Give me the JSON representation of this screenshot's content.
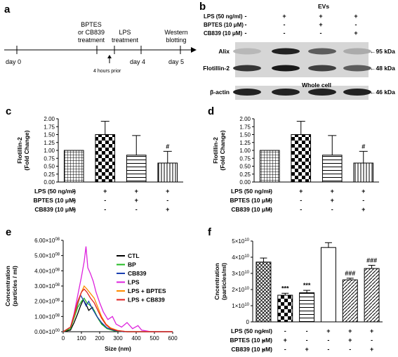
{
  "panels": {
    "a": "a",
    "b": "b",
    "c": "c",
    "d": "d",
    "e": "e",
    "f": "f"
  },
  "timeline": {
    "days": [
      {
        "label": "day 0",
        "day": 0
      },
      {
        "label": "day 4",
        "day": 4
      },
      {
        "label": "day 5",
        "day": 5
      }
    ],
    "events": [
      {
        "lines": [
          "BPTES",
          "or CB839",
          "treatment"
        ]
      },
      {
        "lines": [
          "LPS",
          "treatment"
        ]
      },
      {
        "lines": [
          "Western",
          "blotting"
        ]
      }
    ],
    "prior_note": "4 hours prior"
  },
  "western": {
    "evs_label": "EVs",
    "whole_cell_label": "Whole cell",
    "conditions": [
      {
        "label": "LPS (50 ng/ml)",
        "signs": [
          "-",
          "+",
          "+",
          "+"
        ]
      },
      {
        "label": "BPTES (10 μM)",
        "signs": [
          "-",
          "-",
          "+",
          "-"
        ]
      },
      {
        "label": "CB839 (10 μM)",
        "signs": [
          "-",
          "-",
          "-",
          "+"
        ]
      }
    ],
    "bands": [
      {
        "name": "Alix",
        "size": "95 kDa",
        "intensity": [
          0.08,
          0.85,
          0.55,
          0.15
        ]
      },
      {
        "name": "Flotillin-2",
        "size": "48 kDa",
        "intensity": [
          0.75,
          0.9,
          0.7,
          0.55
        ]
      },
      {
        "name": "β-actin",
        "size": "46 kDa",
        "intensity": [
          0.85,
          0.85,
          0.85,
          0.85
        ]
      }
    ]
  },
  "conditions_cd": [
    {
      "label": "LPS (50 ng/ml)",
      "signs": [
        "-",
        "+",
        "+",
        "+"
      ]
    },
    {
      "label": "BPTES (10 μM)",
      "signs": [
        "-",
        "-",
        "+",
        "-"
      ]
    },
    {
      "label": "CB839 (10 μM)",
      "signs": [
        "-",
        "-",
        "-",
        "+"
      ]
    }
  ],
  "conditions_f": [
    {
      "label": "LPS (50 ng/ml)",
      "signs": [
        "-",
        "-",
        "-",
        "+",
        "+",
        "+"
      ]
    },
    {
      "label": "BPTES (10 μM)",
      "signs": [
        "-",
        "+",
        "-",
        "-",
        "+",
        "-"
      ]
    },
    {
      "label": "CB839 (10 μM)",
      "signs": [
        "-",
        "-",
        "+",
        "-",
        "-",
        "+"
      ]
    }
  ],
  "chart_data": [
    {
      "panel": "c",
      "type": "bar",
      "ylabel": [
        "Flotillin-2",
        "(Fold Change)"
      ],
      "ylim": [
        0,
        2.0
      ],
      "yticks": [
        "0.00",
        "0.25",
        "0.50",
        "0.75",
        "1.00",
        "1.25",
        "1.50",
        "1.75",
        "2.00"
      ],
      "values": [
        1.0,
        1.5,
        0.85,
        0.6
      ],
      "errors": [
        0,
        0.42,
        0.62,
        0.37
      ],
      "annotations": [
        "",
        "",
        "",
        "#"
      ],
      "patterns": [
        "grid",
        "checker",
        "hlines",
        "vlines"
      ]
    },
    {
      "panel": "d",
      "type": "bar",
      "ylabel": [
        "Flotillin-2",
        "(Fold Change)"
      ],
      "ylim": [
        0,
        2.0
      ],
      "yticks": [
        "0.00",
        "0.25",
        "0.50",
        "0.75",
        "1.00",
        "1.25",
        "1.50",
        "1.75",
        "2.00"
      ],
      "values": [
        1.0,
        1.5,
        0.85,
        0.6
      ],
      "errors": [
        0,
        0.42,
        0.62,
        0.37
      ],
      "annotations": [
        "",
        "",
        "",
        "#"
      ],
      "patterns": [
        "grid",
        "checker",
        "hlines",
        "vlines"
      ]
    },
    {
      "panel": "e",
      "type": "line",
      "xlabel": "Size (nm)",
      "ylabel": [
        "Concentration",
        "(particles / ml)"
      ],
      "xlim": [
        0,
        600
      ],
      "xticks": [
        "0",
        "100",
        "200",
        "300",
        "400",
        "500",
        "600"
      ],
      "ylim": [
        0,
        600000000
      ],
      "yticks": [
        {
          "m": "0.00",
          "e": "00"
        },
        {
          "m": "1.00",
          "e": "08"
        },
        {
          "m": "2.00",
          "e": "08"
        },
        {
          "m": "3.00",
          "e": "08"
        },
        {
          "m": "4.00",
          "e": "08"
        },
        {
          "m": "5.00",
          "e": "08"
        },
        {
          "m": "6.00",
          "e": "08"
        }
      ],
      "series": [
        {
          "name": "CTL",
          "color": "#000000",
          "points": [
            [
              0,
              0
            ],
            [
              40,
              0.1
            ],
            [
              60,
              0.6
            ],
            [
              80,
              1.2
            ],
            [
              95,
              1.7
            ],
            [
              110,
              2.1
            ],
            [
              125,
              1.8
            ],
            [
              140,
              1.4
            ],
            [
              160,
              1.6
            ],
            [
              180,
              1.1
            ],
            [
              200,
              0.7
            ],
            [
              230,
              0.3
            ],
            [
              260,
              0.15
            ],
            [
              300,
              0.05
            ],
            [
              350,
              0
            ],
            [
              600,
              0
            ]
          ]
        },
        {
          "name": "BP",
          "color": "#22bb22",
          "points": [
            [
              0,
              0
            ],
            [
              40,
              0.2
            ],
            [
              60,
              0.9
            ],
            [
              80,
              1.6
            ],
            [
              100,
              2.0
            ],
            [
              115,
              2.2
            ],
            [
              130,
              1.9
            ],
            [
              150,
              1.7
            ],
            [
              170,
              1.4
            ],
            [
              190,
              0.9
            ],
            [
              210,
              0.5
            ],
            [
              240,
              0.2
            ],
            [
              280,
              0.05
            ],
            [
              330,
              0
            ],
            [
              600,
              0
            ]
          ]
        },
        {
          "name": "CB839",
          "color": "#1a3fb0",
          "points": [
            [
              0,
              0
            ],
            [
              40,
              0.3
            ],
            [
              60,
              1.0
            ],
            [
              80,
              1.8
            ],
            [
              95,
              2.4
            ],
            [
              110,
              2.1
            ],
            [
              125,
              1.7
            ],
            [
              140,
              2.0
            ],
            [
              160,
              1.5
            ],
            [
              185,
              1.0
            ],
            [
              210,
              0.6
            ],
            [
              240,
              0.25
            ],
            [
              280,
              0.08
            ],
            [
              330,
              0
            ],
            [
              600,
              0
            ]
          ]
        },
        {
          "name": "LPS",
          "color": "#dd22dd",
          "points": [
            [
              0,
              0
            ],
            [
              40,
              0.3
            ],
            [
              60,
              1.2
            ],
            [
              80,
              2.4
            ],
            [
              100,
              3.6
            ],
            [
              115,
              4.6
            ],
            [
              125,
              5.6
            ],
            [
              135,
              4.2
            ],
            [
              150,
              3.8
            ],
            [
              165,
              3.3
            ],
            [
              180,
              2.6
            ],
            [
              200,
              1.9
            ],
            [
              220,
              1.3
            ],
            [
              245,
              0.8
            ],
            [
              270,
              1.0
            ],
            [
              290,
              0.5
            ],
            [
              320,
              0.3
            ],
            [
              350,
              0.6
            ],
            [
              380,
              0.2
            ],
            [
              410,
              0.4
            ],
            [
              430,
              0.1
            ],
            [
              480,
              0
            ],
            [
              600,
              0
            ]
          ]
        },
        {
          "name": "LPS + BPTES",
          "color": "#ff8c00",
          "points": [
            [
              0,
              0
            ],
            [
              40,
              0.3
            ],
            [
              60,
              1.0
            ],
            [
              80,
              1.9
            ],
            [
              100,
              2.6
            ],
            [
              115,
              3.0
            ],
            [
              130,
              2.8
            ],
            [
              150,
              2.5
            ],
            [
              170,
              2.2
            ],
            [
              190,
              1.6
            ],
            [
              210,
              1.0
            ],
            [
              235,
              0.5
            ],
            [
              260,
              0.25
            ],
            [
              300,
              0.08
            ],
            [
              350,
              0
            ],
            [
              600,
              0
            ]
          ]
        },
        {
          "name": "LPS + CB839",
          "color": "#e02020",
          "points": [
            [
              0,
              0
            ],
            [
              40,
              0.3
            ],
            [
              60,
              1.1
            ],
            [
              80,
              2.0
            ],
            [
              100,
              2.6
            ],
            [
              115,
              2.8
            ],
            [
              130,
              2.6
            ],
            [
              150,
              2.2
            ],
            [
              170,
              1.9
            ],
            [
              190,
              1.4
            ],
            [
              210,
              0.9
            ],
            [
              235,
              0.45
            ],
            [
              260,
              0.2
            ],
            [
              300,
              0.06
            ],
            [
              350,
              0
            ],
            [
              600,
              0
            ]
          ]
        }
      ]
    },
    {
      "panel": "f",
      "type": "bar",
      "ylabel": [
        "Cncentration",
        "(particles/ml)"
      ],
      "ylim": [
        0,
        50000000000
      ],
      "yticks": [
        {
          "m": "0",
          "e": ""
        },
        {
          "m": "1×10",
          "e": "10"
        },
        {
          "m": "2×10",
          "e": "10"
        },
        {
          "m": "3×10",
          "e": "10"
        },
        {
          "m": "4×10",
          "e": "10"
        },
        {
          "m": "5×10",
          "e": "10"
        }
      ],
      "values": [
        37000000000,
        16500000000,
        18000000000,
        46000000000,
        26000000000,
        33000000000
      ],
      "errors": [
        2500000000,
        1200000000,
        1500000000,
        3000000000,
        1000000000,
        2000000000
      ],
      "annotations": [
        "",
        "***",
        "***",
        "",
        "###",
        "###"
      ],
      "patterns": [
        "diag-cross",
        "checker",
        "hlines",
        "none",
        "diag",
        "diag"
      ]
    }
  ]
}
